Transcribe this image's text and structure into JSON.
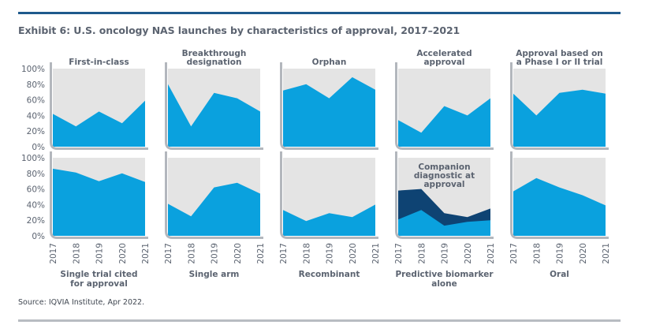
{
  "title": "Exhibit 6: U.S. oncology NAS launches by characteristics of approval, 2017–2021",
  "source": "Source: IQVIA Institute, Apr 2022.",
  "colors": {
    "background_area": "#e4e4e4",
    "primary_area": "#0aa1de",
    "secondary_area": "#0e4373",
    "axis": "#b3b7bd",
    "text": "#5b6370",
    "top_rule": "#1f5a8c",
    "bottom_rule": "#b8bcc2"
  },
  "chart_data": [
    {
      "type": "area",
      "title": "First-in-class",
      "title_position": "top",
      "x": [
        "2017",
        "2018",
        "2019",
        "2020",
        "2021"
      ],
      "series": [
        {
          "name": "First-in-class",
          "values": [
            42,
            26,
            45,
            30,
            59
          ]
        }
      ],
      "ylim": [
        0,
        100
      ],
      "yticks": [
        "0%",
        "20%",
        "40%",
        "60%",
        "80%",
        "100%"
      ],
      "xlabel": "",
      "ylabel": ""
    },
    {
      "type": "area",
      "title": "Breakthrough designation",
      "title_position": "top",
      "x": [
        "2017",
        "2018",
        "2019",
        "2020",
        "2021"
      ],
      "series": [
        {
          "name": "Breakthrough designation",
          "values": [
            80,
            26,
            69,
            62,
            45
          ]
        }
      ],
      "ylim": [
        0,
        100
      ]
    },
    {
      "type": "area",
      "title": "Orphan",
      "title_position": "top",
      "x": [
        "2017",
        "2018",
        "2019",
        "2020",
        "2021"
      ],
      "series": [
        {
          "name": "Orphan",
          "values": [
            72,
            80,
            62,
            89,
            73
          ]
        }
      ],
      "ylim": [
        0,
        100
      ]
    },
    {
      "type": "area",
      "title": "Accelerated approval",
      "title_position": "top",
      "x": [
        "2017",
        "2018",
        "2019",
        "2020",
        "2021"
      ],
      "series": [
        {
          "name": "Accelerated approval",
          "values": [
            34,
            18,
            52,
            40,
            62
          ]
        }
      ],
      "ylim": [
        0,
        100
      ]
    },
    {
      "type": "area",
      "title": "Approval based on a Phase I or II trial",
      "title_position": "top",
      "x": [
        "2017",
        "2018",
        "2019",
        "2020",
        "2021"
      ],
      "series": [
        {
          "name": "Approval based on a Phase I or II trial",
          "values": [
            68,
            40,
            69,
            73,
            68
          ]
        }
      ],
      "ylim": [
        0,
        100
      ]
    },
    {
      "type": "area",
      "title": "Single trial cited for approval",
      "title_position": "bottom",
      "x": [
        "2017",
        "2018",
        "2019",
        "2020",
        "2021"
      ],
      "series": [
        {
          "name": "Single trial cited for approval",
          "values": [
            86,
            81,
            70,
            80,
            69
          ]
        }
      ],
      "ylim": [
        0,
        100
      ],
      "yticks": [
        "0%",
        "20%",
        "40%",
        "60%",
        "80%",
        "100%"
      ]
    },
    {
      "type": "area",
      "title": "Single arm",
      "title_position": "bottom",
      "x": [
        "2017",
        "2018",
        "2019",
        "2020",
        "2021"
      ],
      "series": [
        {
          "name": "Single arm",
          "values": [
            41,
            25,
            62,
            68,
            54
          ]
        }
      ],
      "ylim": [
        0,
        100
      ]
    },
    {
      "type": "area",
      "title": "Recombinant",
      "title_position": "bottom",
      "x": [
        "2017",
        "2018",
        "2019",
        "2020",
        "2021"
      ],
      "series": [
        {
          "name": "Recombinant",
          "values": [
            33,
            19,
            29,
            24,
            40
          ]
        }
      ],
      "ylim": [
        0,
        100
      ]
    },
    {
      "type": "area",
      "title": "Predictive biomarker alone",
      "title_position": "bottom",
      "inner_title": "Companion diagnostic at approval",
      "x": [
        "2017",
        "2018",
        "2019",
        "2020",
        "2021"
      ],
      "series": [
        {
          "name": "Companion diagnostic at approval",
          "values": [
            58,
            60,
            29,
            24,
            35
          ],
          "color": "secondary"
        },
        {
          "name": "Predictive biomarker alone",
          "values": [
            21,
            33,
            13,
            18,
            20
          ],
          "color": "primary"
        }
      ],
      "ylim": [
        0,
        100
      ]
    },
    {
      "type": "area",
      "title": "Oral",
      "title_position": "bottom",
      "x": [
        "2017",
        "2018",
        "2019",
        "2020",
        "2021"
      ],
      "series": [
        {
          "name": "Oral",
          "values": [
            57,
            74,
            62,
            52,
            39
          ]
        }
      ],
      "ylim": [
        0,
        100
      ]
    }
  ]
}
